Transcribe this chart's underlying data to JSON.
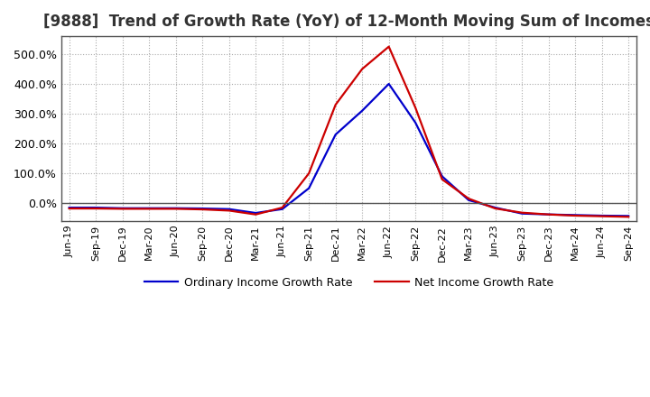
{
  "title": "[9888]  Trend of Growth Rate (YoY) of 12-Month Moving Sum of Incomes",
  "title_fontsize": 12,
  "background_color": "#ffffff",
  "grid_color": "#aaaaaa",
  "x_labels": [
    "Jun-19",
    "Sep-19",
    "Dec-19",
    "Mar-20",
    "Jun-20",
    "Sep-20",
    "Dec-20",
    "Mar-21",
    "Jun-21",
    "Sep-21",
    "Dec-21",
    "Mar-22",
    "Jun-22",
    "Sep-22",
    "Dec-22",
    "Mar-23",
    "Jun-23",
    "Sep-23",
    "Dec-23",
    "Mar-24",
    "Jun-24",
    "Sep-24"
  ],
  "ordinary_income": [
    -15,
    -15,
    -17,
    -17,
    -17,
    -18,
    -20,
    -33,
    -20,
    50,
    230,
    310,
    400,
    270,
    90,
    10,
    -15,
    -35,
    -38,
    -40,
    -42,
    -43
  ],
  "net_income": [
    -18,
    -18,
    -19,
    -19,
    -19,
    -21,
    -25,
    -38,
    -15,
    100,
    330,
    450,
    525,
    320,
    80,
    15,
    -18,
    -32,
    -38,
    -42,
    -44,
    -46
  ],
  "ordinary_color": "#0000cc",
  "net_color": "#cc0000",
  "line_width": 1.6,
  "ylim_min": -60,
  "ylim_max": 560,
  "yticks": [
    0,
    100,
    200,
    300,
    400,
    500
  ],
  "legend_labels": [
    "Ordinary Income Growth Rate",
    "Net Income Growth Rate"
  ]
}
